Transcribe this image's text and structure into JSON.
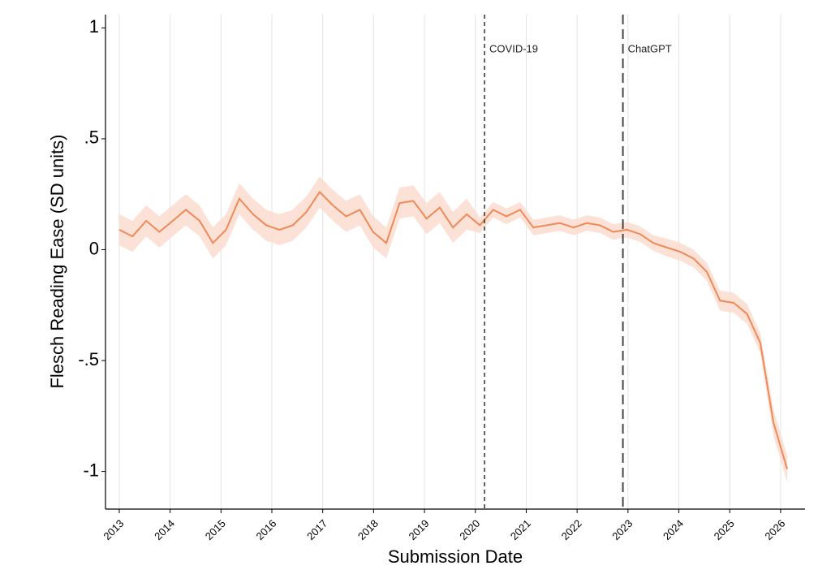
{
  "chart_data": {
    "type": "line",
    "ylabel": "Flesch Reading Ease (SD units)",
    "xlabel": "Submission Date",
    "xlim": [
      2012.73,
      2026.48
    ],
    "ylim": [
      -1.17,
      1.06
    ],
    "xticks": [
      2013,
      2014,
      2015,
      2016,
      2017,
      2018,
      2019,
      2020,
      2021,
      2022,
      2023,
      2024,
      2025,
      2026
    ],
    "yticks": [
      1,
      {
        "value": 0.5,
        "label": ".5"
      },
      0,
      {
        "value": -0.5,
        "label": "-.5"
      },
      -1
    ],
    "grid": true,
    "color": "#ee8a58",
    "band_color": "#fbdcd0",
    "x": [
      2013,
      2013.26,
      2013.53,
      2013.79,
      2014.05,
      2014.31,
      2014.58,
      2014.84,
      2015.1,
      2015.36,
      2015.63,
      2015.89,
      2016.15,
      2016.41,
      2016.68,
      2016.94,
      2017.2,
      2017.46,
      2017.73,
      2017.99,
      2018.25,
      2018.51,
      2018.78,
      2019.04,
      2019.3,
      2019.56,
      2019.83,
      2020.09,
      2020.35,
      2020.61,
      2020.88,
      2021.14,
      2021.4,
      2021.66,
      2021.93,
      2022.19,
      2022.45,
      2022.71,
      2022.98,
      2023.24,
      2023.5,
      2023.76,
      2024.03,
      2024.29,
      2024.55,
      2024.81,
      2025.08,
      2025.34,
      2025.6,
      2025.86,
      2026.13
    ],
    "values": [
      0.09,
      0.06,
      0.13,
      0.08,
      0.13,
      0.18,
      0.13,
      0.03,
      0.09,
      0.23,
      0.16,
      0.11,
      0.09,
      0.11,
      0.17,
      0.26,
      0.2,
      0.15,
      0.18,
      0.08,
      0.03,
      0.21,
      0.22,
      0.14,
      0.19,
      0.1,
      0.16,
      0.11,
      0.18,
      0.15,
      0.18,
      0.1,
      0.11,
      0.12,
      0.1,
      0.12,
      0.11,
      0.08,
      0.09,
      0.07,
      0.03,
      0.01,
      -0.01,
      -0.04,
      -0.1,
      -0.23,
      -0.24,
      -0.29,
      -0.42,
      -0.78,
      -0.99
    ],
    "lower": [
      0.02,
      -0.01,
      0.06,
      0.01,
      0.06,
      0.11,
      0.06,
      -0.04,
      0.02,
      0.16,
      0.09,
      0.04,
      0.02,
      0.04,
      0.1,
      0.19,
      0.13,
      0.08,
      0.11,
      0.01,
      -0.04,
      0.14,
      0.15,
      0.07,
      0.12,
      0.03,
      0.09,
      0.075,
      0.145,
      0.115,
      0.145,
      0.065,
      0.075,
      0.085,
      0.065,
      0.085,
      0.075,
      0.045,
      0.055,
      0.035,
      -0.005,
      -0.03,
      -0.05,
      -0.08,
      -0.14,
      -0.275,
      -0.285,
      -0.335,
      -0.465,
      -0.84,
      -1.05
    ],
    "upper": [
      0.16,
      0.13,
      0.2,
      0.15,
      0.2,
      0.25,
      0.2,
      0.1,
      0.16,
      0.3,
      0.23,
      0.18,
      0.16,
      0.18,
      0.24,
      0.33,
      0.27,
      0.22,
      0.25,
      0.15,
      0.1,
      0.28,
      0.29,
      0.21,
      0.26,
      0.17,
      0.23,
      0.145,
      0.215,
      0.185,
      0.215,
      0.135,
      0.145,
      0.155,
      0.135,
      0.155,
      0.145,
      0.115,
      0.125,
      0.105,
      0.065,
      0.05,
      0.03,
      0.0,
      -0.06,
      -0.185,
      -0.195,
      -0.245,
      -0.375,
      -0.72,
      -0.93
    ],
    "vlines": [
      {
        "x": 2020.18,
        "label": "COVID-19",
        "style": "short"
      },
      {
        "x": 2022.9,
        "label": "ChatGPT",
        "style": "long"
      }
    ]
  }
}
